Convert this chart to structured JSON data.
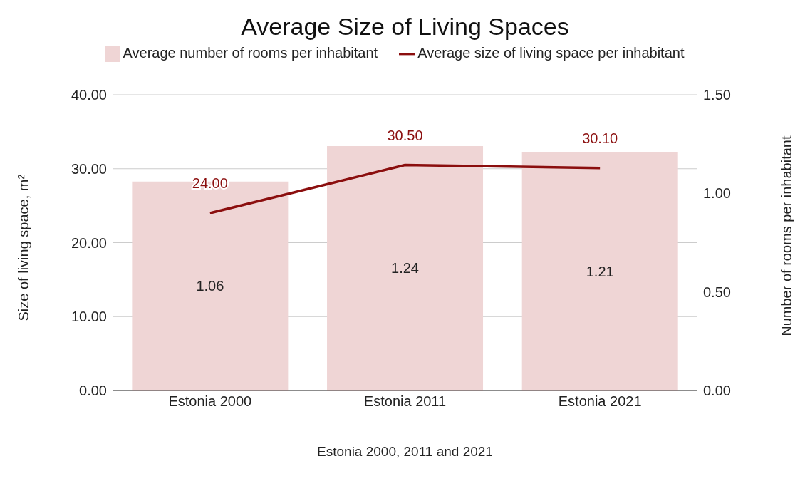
{
  "chart_data": {
    "type": "bar",
    "title": "Average Size of Living Spaces",
    "xlabel": "Estonia 2000, 2011 and 2021",
    "ylabel": "Size of living space, m²",
    "y2label": "Number of rooms per inhabitant",
    "categories": [
      "Estonia 2000",
      "Estonia 2011",
      "Estonia 2021"
    ],
    "series": [
      {
        "name": "Average number of rooms per inhabitant",
        "axis": "y2",
        "color": "#efd5d5",
        "values": [
          1.06,
          1.24,
          1.21
        ],
        "value_labels": [
          "1.06",
          "1.24",
          "1.21"
        ]
      },
      {
        "name": "Average size of living space per inhabitant",
        "type": "line",
        "axis": "y",
        "color": "#8b0e0e",
        "values": [
          24,
          30.5,
          30.1
        ],
        "value_labels": [
          "24.00",
          "30.50",
          "30.10"
        ]
      }
    ],
    "ylim": [
      0,
      40
    ],
    "yticks": [
      {
        "value": 0,
        "label": "0.00"
      },
      {
        "value": 10,
        "label": "10.00"
      },
      {
        "value": 20,
        "label": "20.00"
      },
      {
        "value": 30,
        "label": "30.00"
      },
      {
        "value": 40,
        "label": "40.00"
      }
    ],
    "y2lim": [
      0,
      1.5
    ],
    "y2ticks": [
      {
        "value": 0,
        "label": "0.00"
      },
      {
        "value": 0.5,
        "label": "0.50"
      },
      {
        "value": 1,
        "label": "1.00"
      },
      {
        "value": 1.5,
        "label": "1.50"
      }
    ],
    "grid": "y",
    "legend": "top",
    "marker": "none",
    "line_style": "solid"
  }
}
